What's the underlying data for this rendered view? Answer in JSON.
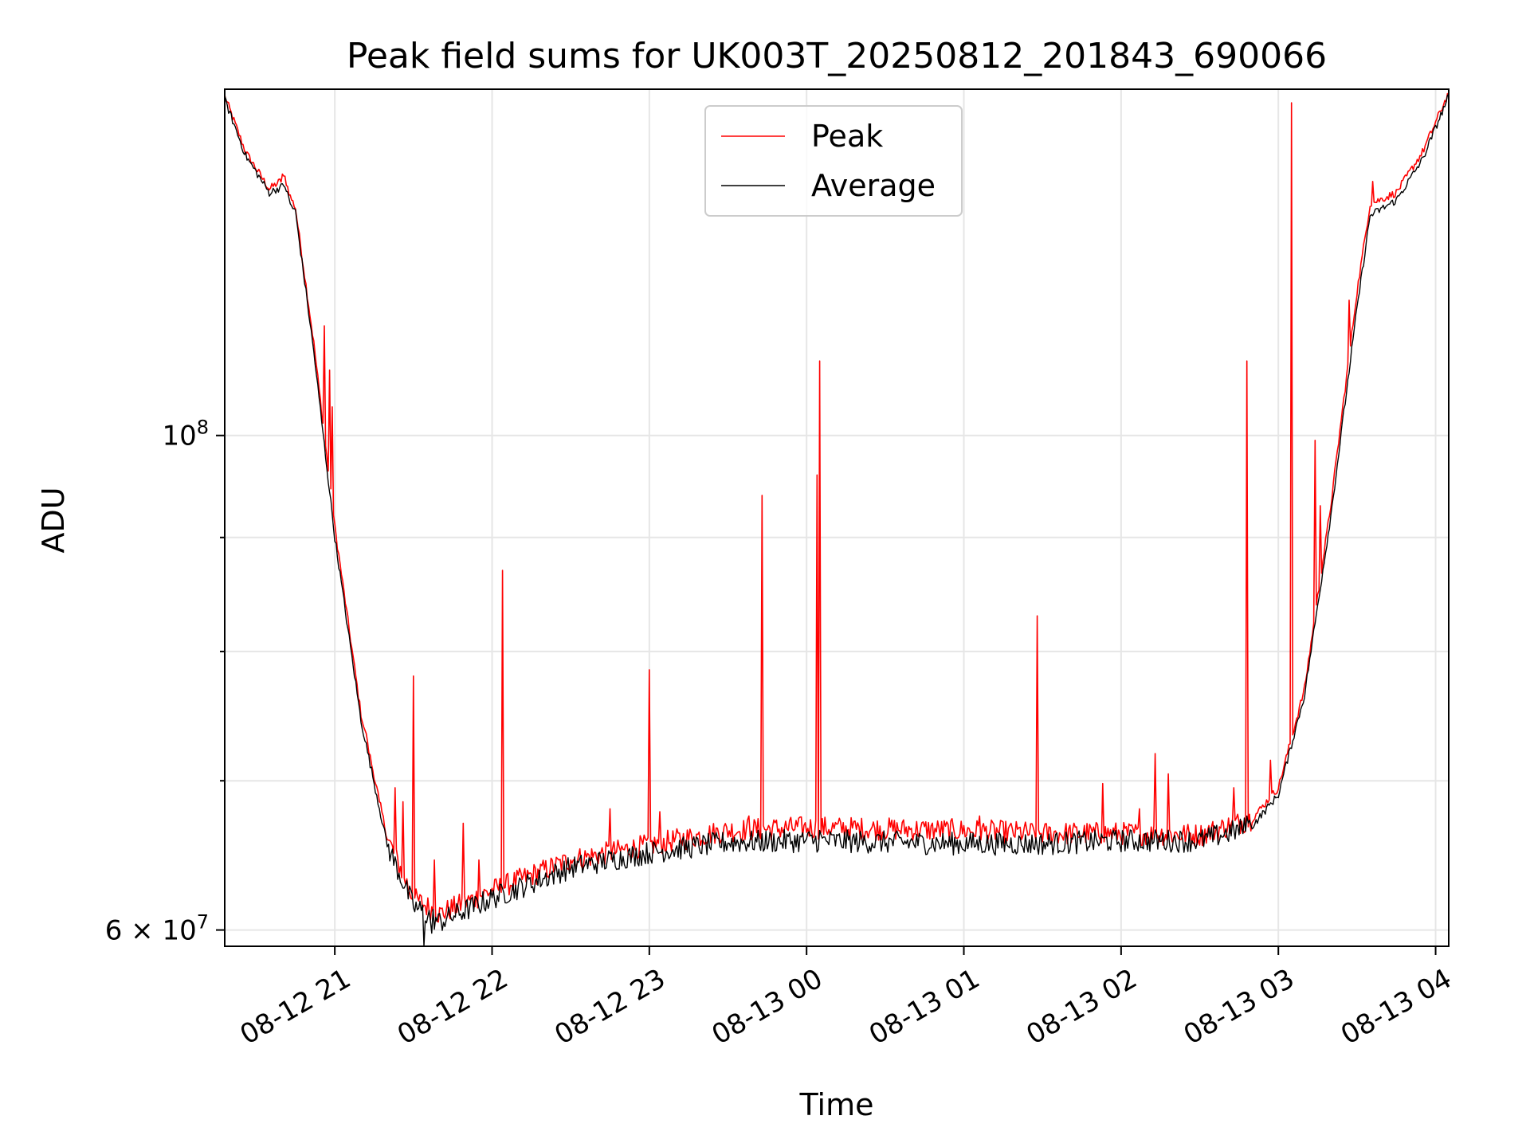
{
  "chart_data": {
    "type": "line",
    "title": "Peak field sums for UK003T_20250812_201843_690066",
    "xlabel": "Time",
    "ylabel": "ADU",
    "yscale": "log",
    "grid": true,
    "legend_position": "upper center",
    "xlim": [
      "2025-08-12 20:18",
      "2025-08-13 04:05"
    ],
    "ylim": [
      59000000,
      143000000
    ],
    "x_ticks": [
      "08-12 21",
      "08-12 22",
      "08-12 23",
      "08-13 00",
      "08-13 01",
      "08-13 02",
      "08-13 03",
      "08-13 04"
    ],
    "x_tick_times": [
      "2025-08-12 21:00",
      "2025-08-12 22:00",
      "2025-08-12 23:00",
      "2025-08-13 00:00",
      "2025-08-13 01:00",
      "2025-08-13 02:00",
      "2025-08-13 03:00",
      "2025-08-13 04:00"
    ],
    "y_ticks": [
      {
        "value": 100000000,
        "base": "10",
        "exp": "8",
        "mantissa": ""
      },
      {
        "value": 60000000,
        "base": "10",
        "exp": "7",
        "mantissa": "6"
      }
    ],
    "y_minor_ticks": [
      70000000,
      80000000,
      90000000
    ],
    "series": [
      {
        "name": "Peak",
        "color": "#ff0000",
        "baseline": [
          [
            "2025-08-12 20:18",
            142000000
          ],
          [
            "2025-08-12 20:26",
            134000000
          ],
          [
            "2025-08-12 20:35",
            129000000
          ],
          [
            "2025-08-12 20:41",
            130500000
          ],
          [
            "2025-08-12 20:43",
            128000000
          ],
          [
            "2025-08-12 20:45",
            126500000
          ],
          [
            "2025-08-12 20:52",
            110000000
          ],
          [
            "2025-08-12 21:00",
            91000000
          ],
          [
            "2025-08-12 21:10",
            75000000
          ],
          [
            "2025-08-12 21:20",
            66000000
          ],
          [
            "2025-08-12 21:30",
            62000000
          ],
          [
            "2025-08-12 21:40",
            61000000
          ],
          [
            "2025-08-12 22:00",
            62500000
          ],
          [
            "2025-08-12 22:30",
            64500000
          ],
          [
            "2025-08-12 23:00",
            65500000
          ],
          [
            "2025-08-12 23:30",
            66500000
          ],
          [
            "2025-08-13 00:00",
            66700000
          ],
          [
            "2025-08-13 00:30",
            66600000
          ],
          [
            "2025-08-13 01:00",
            66500000
          ],
          [
            "2025-08-13 01:30",
            66300000
          ],
          [
            "2025-08-13 02:00",
            66300000
          ],
          [
            "2025-08-13 02:30",
            66200000
          ],
          [
            "2025-08-13 02:50",
            67300000
          ],
          [
            "2025-08-13 03:00",
            69500000
          ],
          [
            "2025-08-13 03:10",
            77000000
          ],
          [
            "2025-08-13 03:20",
            93000000
          ],
          [
            "2025-08-13 03:30",
            116000000
          ],
          [
            "2025-08-13 03:35",
            127000000
          ],
          [
            "2025-08-13 03:45",
            128500000
          ],
          [
            "2025-08-13 03:55",
            134000000
          ],
          [
            "2025-08-13 04:05",
            142500000
          ]
        ],
        "spikes": [
          [
            "2025-08-12 20:40",
            131000000
          ],
          [
            "2025-08-12 20:56",
            112000000
          ],
          [
            "2025-08-12 20:58",
            107000000
          ],
          [
            "2025-08-12 20:59",
            103000000
          ],
          [
            "2025-08-12 21:12",
            73500000
          ],
          [
            "2025-08-12 21:17",
            68500000
          ],
          [
            "2025-08-12 21:23",
            69500000
          ],
          [
            "2025-08-12 21:26",
            68500000
          ],
          [
            "2025-08-12 21:30",
            78000000
          ],
          [
            "2025-08-12 21:38",
            64500000
          ],
          [
            "2025-08-12 21:49",
            67000000
          ],
          [
            "2025-08-12 21:55",
            64500000
          ],
          [
            "2025-08-12 22:04",
            87000000
          ],
          [
            "2025-08-12 22:30",
            64500000
          ],
          [
            "2025-08-12 22:45",
            68000000
          ],
          [
            "2025-08-12 23:00",
            78500000
          ],
          [
            "2025-08-12 23:04",
            67800000
          ],
          [
            "2025-08-12 23:38",
            67500000
          ],
          [
            "2025-08-12 23:43",
            94000000
          ],
          [
            "2025-08-13 00:04",
            96000000
          ],
          [
            "2025-08-13 00:05",
            108000000
          ],
          [
            "2025-08-13 00:28",
            66800000
          ],
          [
            "2025-08-13 00:56",
            66700000
          ],
          [
            "2025-08-13 01:06",
            67500000
          ],
          [
            "2025-08-13 01:28",
            83000000
          ],
          [
            "2025-08-13 01:53",
            69800000
          ],
          [
            "2025-08-13 02:07",
            68000000
          ],
          [
            "2025-08-13 02:13",
            72000000
          ],
          [
            "2025-08-13 02:18",
            70500000
          ],
          [
            "2025-08-13 02:43",
            69500000
          ],
          [
            "2025-08-13 02:48",
            108000000
          ],
          [
            "2025-08-13 02:57",
            71500000
          ],
          [
            "2025-08-13 03:05",
            141000000
          ],
          [
            "2025-08-13 03:14",
            99500000
          ],
          [
            "2025-08-13 03:16",
            93000000
          ],
          [
            "2025-08-13 03:27",
            115000000
          ],
          [
            "2025-08-13 03:36",
            130000000
          ]
        ]
      },
      {
        "name": "Average",
        "color": "#000000",
        "baseline": [
          [
            "2025-08-12 20:18",
            141500000
          ],
          [
            "2025-08-12 20:26",
            133500000
          ],
          [
            "2025-08-12 20:35",
            128500000
          ],
          [
            "2025-08-12 20:41",
            129500000
          ],
          [
            "2025-08-12 20:43",
            127000000
          ],
          [
            "2025-08-12 20:45",
            126000000
          ],
          [
            "2025-08-12 20:52",
            109000000
          ],
          [
            "2025-08-12 21:00",
            90000000
          ],
          [
            "2025-08-12 21:10",
            74500000
          ],
          [
            "2025-08-12 21:20",
            65500000
          ],
          [
            "2025-08-12 21:30",
            61500000
          ],
          [
            "2025-08-12 21:40",
            60500000
          ],
          [
            "2025-08-12 22:00",
            62000000
          ],
          [
            "2025-08-12 22:30",
            64000000
          ],
          [
            "2025-08-12 23:00",
            65000000
          ],
          [
            "2025-08-12 23:30",
            65700000
          ],
          [
            "2025-08-13 00:00",
            65800000
          ],
          [
            "2025-08-13 00:30",
            65700000
          ],
          [
            "2025-08-13 01:00",
            65600000
          ],
          [
            "2025-08-13 01:30",
            65600000
          ],
          [
            "2025-08-13 02:00",
            65800000
          ],
          [
            "2025-08-13 02:30",
            65800000
          ],
          [
            "2025-08-13 02:50",
            66800000
          ],
          [
            "2025-08-13 03:00",
            69000000
          ],
          [
            "2025-08-13 03:10",
            76500000
          ],
          [
            "2025-08-13 03:20",
            92000000
          ],
          [
            "2025-08-13 03:30",
            114000000
          ],
          [
            "2025-08-13 03:35",
            125500000
          ],
          [
            "2025-08-13 03:45",
            127500000
          ],
          [
            "2025-08-13 03:55",
            133000000
          ],
          [
            "2025-08-13 04:05",
            142000000
          ]
        ],
        "spikes": [
          [
            "2025-08-12 21:34",
            59000000
          ],
          [
            "2025-08-12 21:37",
            59800000
          ],
          [
            "2025-08-13 00:05",
            66500000
          ],
          [
            "2025-08-13 02:48",
            67500000
          ]
        ]
      }
    ]
  }
}
